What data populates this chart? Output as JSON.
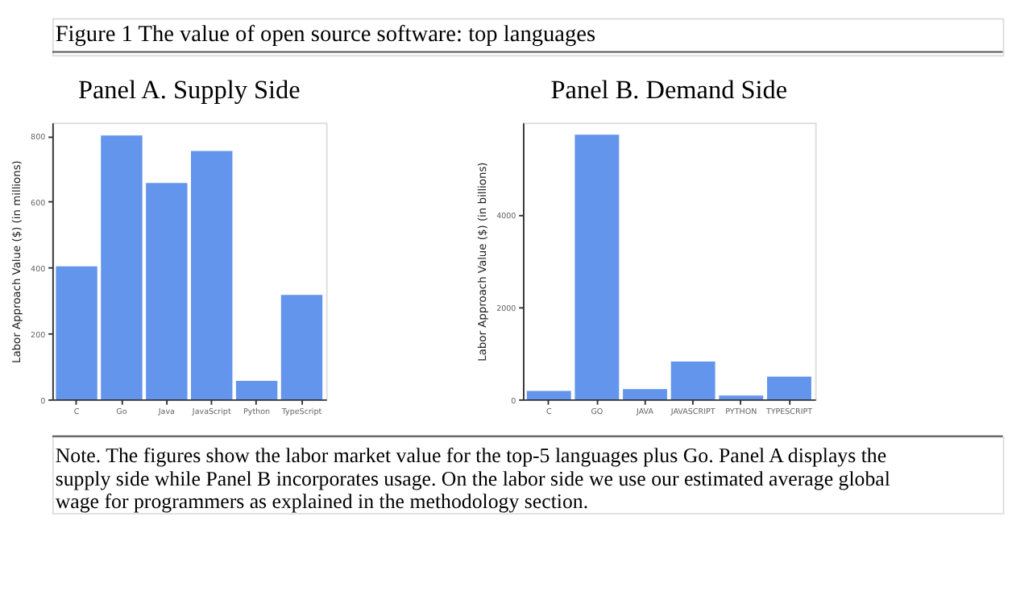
{
  "chart_data": [
    {
      "type": "other",
      "title": "Figure 1 The value of open source software: top languages",
      "annotations": [
        "Note. The figures show the labor market value for the top-5 languages plus Go. Panel A displays the supply side while Panel B incorporates usage. On the labor side we use our estimated average global wage for programmers as explained in the methodology section."
      ]
    },
    {
      "type": "bar",
      "title": "Panel A. Supply Side",
      "ylabel": "Labor Approach Value ($) (in millions)",
      "categories": [
        "C",
        "Go",
        "Java",
        "JavaScript",
        "Python",
        "TypeScript"
      ],
      "values": [
        404,
        801,
        657,
        754,
        56,
        317
      ],
      "color": "#6495ed",
      "ylim": [
        0,
        840
      ],
      "yticks": [
        0,
        200,
        400,
        600,
        800
      ],
      "grid": false
    },
    {
      "type": "bar",
      "title": "Panel B. Demand Side",
      "ylabel": "Labor Approach Value ($) (in billions)",
      "categories": [
        "C",
        "GO",
        "JAVA",
        "JAVASCRIPT",
        "PYTHON",
        "TYPESCRIPT"
      ],
      "values": [
        180,
        5730,
        220,
        820,
        80,
        490
      ],
      "color": "#6495ed",
      "ylim": [
        0,
        5990
      ],
      "yticks": [
        0,
        2000,
        4000
      ],
      "grid": false
    }
  ]
}
